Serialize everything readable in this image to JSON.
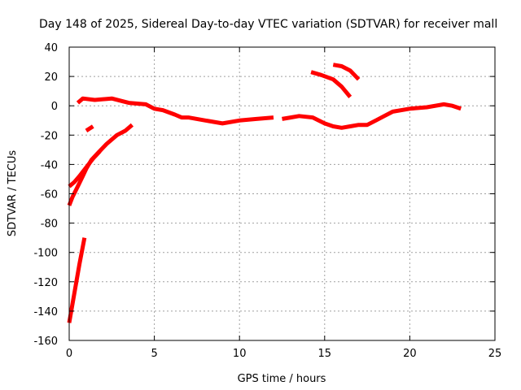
{
  "chart_data": {
    "type": "line",
    "title": "Day 148 of 2025, Sidereal Day-to-day VTEC variation (SDTVAR) for receiver mall",
    "xlabel": "GPS time / hours",
    "ylabel": "SDTVAR / TECUs",
    "xlim": [
      0,
      25
    ],
    "ylim": [
      -160,
      40
    ],
    "xticks": [
      0,
      5,
      10,
      15,
      20,
      25
    ],
    "yticks": [
      -160,
      -140,
      -120,
      -100,
      -80,
      -60,
      -40,
      -20,
      0,
      20,
      40
    ],
    "grid": true,
    "color": "#ff0000",
    "series": [
      {
        "name": "main-trace",
        "points": [
          [
            0.5,
            2
          ],
          [
            0.8,
            5
          ],
          [
            1.5,
            4
          ],
          [
            2.5,
            5
          ],
          [
            3.5,
            2
          ],
          [
            4.5,
            1
          ],
          [
            5.0,
            -2
          ],
          [
            5.5,
            -3
          ],
          [
            6.2,
            -6
          ],
          [
            6.6,
            -8
          ],
          [
            7.0,
            -8
          ],
          [
            8.0,
            -10
          ],
          [
            9.0,
            -12
          ],
          [
            10.0,
            -10
          ],
          [
            11.0,
            -9
          ],
          [
            12.0,
            -8
          ]
        ]
      },
      {
        "name": "midday-trace",
        "points": [
          [
            12.5,
            -9
          ],
          [
            13.0,
            -8
          ],
          [
            13.5,
            -7
          ],
          [
            14.3,
            -8
          ],
          [
            15.0,
            -12
          ],
          [
            15.5,
            -14
          ],
          [
            16.0,
            -15
          ],
          [
            16.5,
            -14
          ],
          [
            17.0,
            -13
          ],
          [
            17.5,
            -13
          ],
          [
            18.0,
            -10
          ],
          [
            18.5,
            -7
          ],
          [
            19.0,
            -4
          ],
          [
            20.0,
            -2
          ],
          [
            21.0,
            -1
          ],
          [
            22.0,
            1
          ],
          [
            22.5,
            0
          ],
          [
            23.0,
            -2
          ]
        ]
      },
      {
        "name": "afternoon-arc-lower",
        "points": [
          [
            14.2,
            23
          ],
          [
            14.8,
            21
          ],
          [
            15.5,
            18
          ],
          [
            16.0,
            13
          ],
          [
            16.5,
            6
          ]
        ]
      },
      {
        "name": "afternoon-arc-upper",
        "points": [
          [
            15.5,
            28
          ],
          [
            16.0,
            27
          ],
          [
            16.5,
            24
          ],
          [
            17.0,
            18
          ]
        ]
      },
      {
        "name": "early-arc-a",
        "points": [
          [
            0.0,
            -68
          ],
          [
            0.2,
            -62
          ],
          [
            0.5,
            -55
          ],
          [
            0.8,
            -48
          ],
          [
            1.0,
            -43
          ],
          [
            1.3,
            -37
          ],
          [
            1.7,
            -32
          ],
          [
            2.2,
            -26
          ],
          [
            2.8,
            -20
          ],
          [
            3.3,
            -17
          ],
          [
            3.7,
            -13
          ]
        ]
      },
      {
        "name": "early-arc-b",
        "points": [
          [
            0.0,
            -55
          ],
          [
            0.3,
            -52
          ],
          [
            0.6,
            -48
          ],
          [
            1.0,
            -42
          ],
          [
            1.4,
            -36
          ],
          [
            1.8,
            -31
          ]
        ]
      },
      {
        "name": "early-short",
        "points": [
          [
            1.0,
            -17
          ],
          [
            1.4,
            -14
          ]
        ]
      },
      {
        "name": "initial-steep",
        "points": [
          [
            0.0,
            -148
          ],
          [
            0.3,
            -128
          ],
          [
            0.6,
            -108
          ],
          [
            0.9,
            -90
          ]
        ]
      }
    ]
  }
}
